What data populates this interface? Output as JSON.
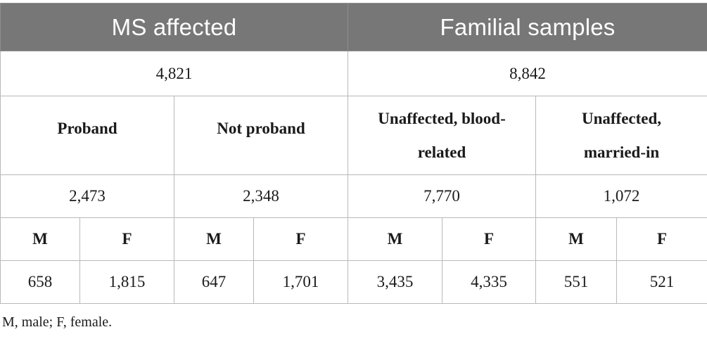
{
  "headers": {
    "ms_affected": "MS affected",
    "familial": "Familial samples"
  },
  "totals": {
    "ms_affected": "4,821",
    "familial": "8,842"
  },
  "groups": [
    {
      "label": "Proband",
      "total": "2,473",
      "male": "658",
      "female": "1,815"
    },
    {
      "label": "Not proband",
      "total": "2,348",
      "male": "647",
      "female": "1,701"
    },
    {
      "label": "Unaffected, blood-related",
      "total": "7,770",
      "male": "3,435",
      "female": "4,335"
    },
    {
      "label": "Unaffected, married-in",
      "total": "1,072",
      "male": "551",
      "female": "521"
    }
  ],
  "sex_labels": {
    "male": "M",
    "female": "F"
  },
  "footnote": "M, male; F, female.",
  "colors": {
    "header_bg": "#777777",
    "header_text": "#ffffff",
    "border": "#b9b9b9"
  }
}
